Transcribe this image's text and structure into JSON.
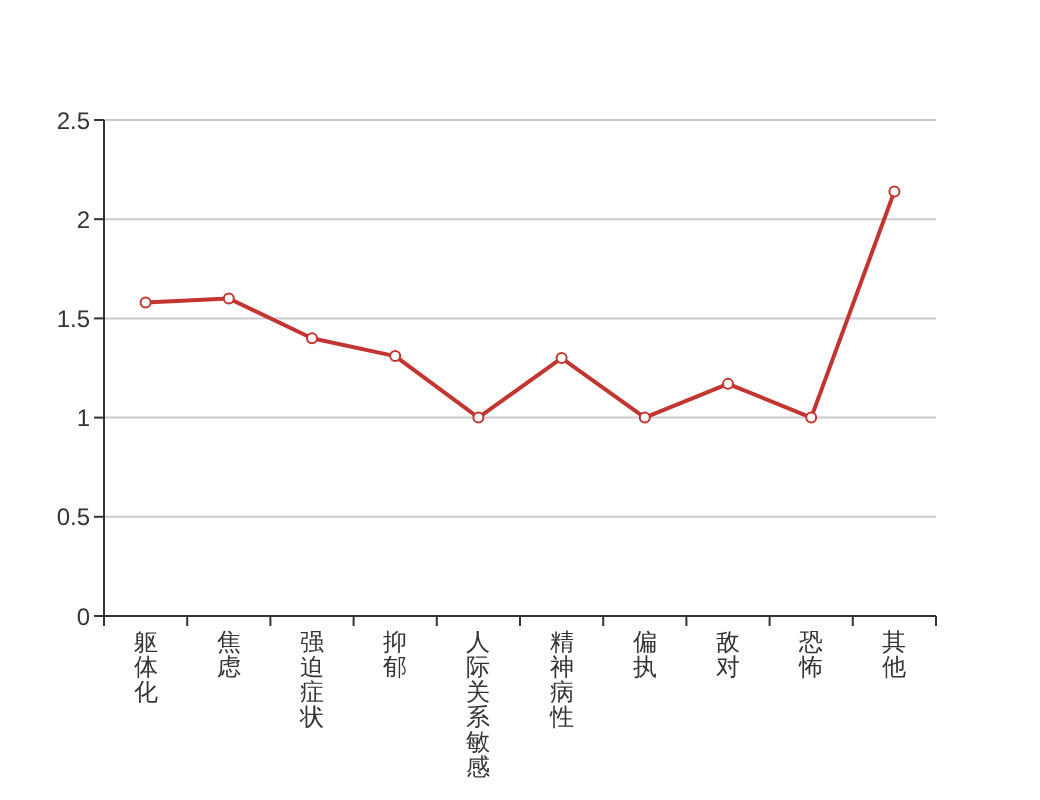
{
  "chart_data": {
    "type": "line",
    "categories": [
      "躯体化",
      "焦虑",
      "强迫症状",
      "抑郁",
      "人际关系敏感",
      "精神病性",
      "偏执",
      "敌对",
      "恐怖",
      "其他"
    ],
    "series": [
      {
        "color": "#c23531",
        "values": [
          1.58,
          1.6,
          1.4,
          1.31,
          1,
          1.3,
          1,
          1.17,
          1,
          2.14
        ]
      }
    ],
    "ylim": [
      0,
      2.5
    ],
    "yticks": [
      0,
      0.5,
      1,
      1.5,
      2,
      2.5
    ],
    "grid": "y",
    "marker": "circle",
    "line_style": "solid"
  }
}
